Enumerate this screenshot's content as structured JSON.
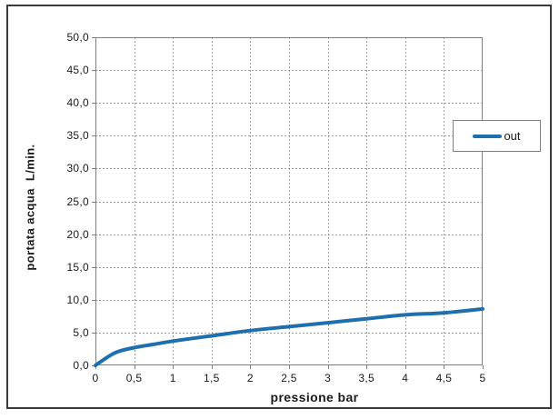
{
  "chart_data": {
    "type": "line",
    "title": "",
    "xlabel": "pressione bar",
    "ylabel": "portata acqua  L/min.",
    "xlim": [
      0,
      5
    ],
    "ylim": [
      0,
      50
    ],
    "grid": true,
    "decimal_separator": ",",
    "x_ticks": {
      "values": [
        0,
        0.5,
        1,
        1.5,
        2,
        2.5,
        3,
        3.5,
        4,
        4.5,
        5
      ],
      "labels": [
        "0",
        "0,5",
        "1",
        "1,5",
        "2",
        "2,5",
        "3",
        "3,5",
        "4",
        "4,5",
        "5"
      ]
    },
    "y_ticks": {
      "values": [
        0,
        5,
        10,
        15,
        20,
        25,
        30,
        35,
        40,
        45,
        50
      ],
      "labels": [
        "0,0",
        "5,0",
        "10,0",
        "15,0",
        "20,0",
        "25,0",
        "30,0",
        "35,0",
        "40,0",
        "45,0",
        "50,0"
      ]
    },
    "legend": {
      "position": "right",
      "entries": [
        {
          "label": "out",
          "color": "#1E6FAE"
        }
      ]
    },
    "series": [
      {
        "name": "out",
        "color": "#1E6FAE",
        "points": [
          [
            0,
            0.0
          ],
          [
            0.25,
            1.9
          ],
          [
            0.5,
            2.7
          ],
          [
            0.75,
            3.2
          ],
          [
            1,
            3.7
          ],
          [
            1.5,
            4.5
          ],
          [
            2,
            5.3
          ],
          [
            2.5,
            5.9
          ],
          [
            3,
            6.5
          ],
          [
            3.5,
            7.1
          ],
          [
            4,
            7.7
          ],
          [
            4.5,
            8.0
          ],
          [
            5,
            8.6
          ]
        ]
      }
    ]
  },
  "colors": {
    "line": "#1E6FAE",
    "grid": "#9e9e9e",
    "axis": "#808080",
    "frame": "#3a3a3a",
    "text": "#1a1a1a",
    "background": "#ffffff"
  }
}
